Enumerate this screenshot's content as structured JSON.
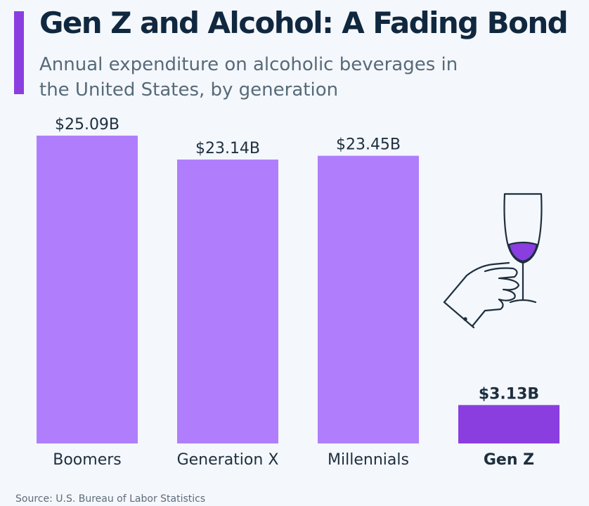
{
  "header": {
    "title": "Gen Z and Alcohol: A Fading Bond",
    "subtitle": "Annual expenditure on alcoholic beverages in the United States, by generation"
  },
  "footer": {
    "source": "Source: U.S. Bureau of Labor Statistics"
  },
  "colors": {
    "bar": "#b07efc",
    "bar_highlight": "#8a3ee0",
    "accent": "#8a3ee0",
    "background": "#f4f7fb"
  },
  "illustration": {
    "icon": "wine-glass-hand-icon"
  },
  "chart_data": {
    "type": "bar",
    "title": "Gen Z and Alcohol: A Fading Bond",
    "subtitle": "Annual expenditure on alcoholic beverages in the United States, by generation",
    "categories": [
      "Boomers",
      "Generation X",
      "Millennials",
      "Gen Z"
    ],
    "values": [
      25.09,
      23.14,
      23.45,
      3.13
    ],
    "data_labels": [
      "$25.09B",
      "$23.14B",
      "$23.45B",
      "$3.13B"
    ],
    "highlight": "Gen Z",
    "unit": "$B",
    "xlabel": "",
    "ylabel": "",
    "ylim": [
      0,
      25.09
    ],
    "grid": false,
    "legend": "none"
  }
}
